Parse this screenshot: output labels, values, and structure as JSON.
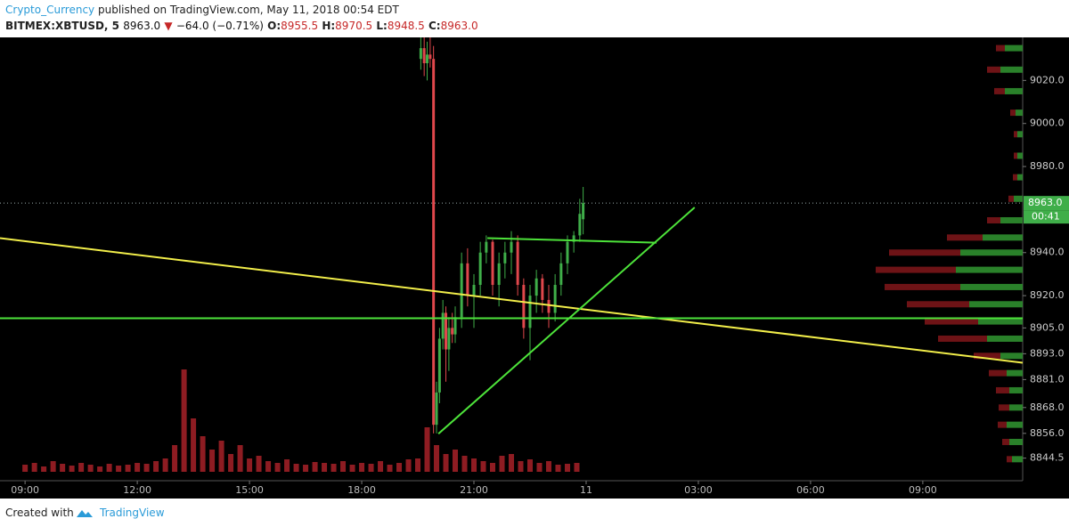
{
  "header": {
    "author": "Crypto_Currency",
    "published": "published on TradingView.com, May 11, 2018 00:54 EDT",
    "symbol": "BITMEX:XBTUSD, 5",
    "last": "8963.0",
    "arrow": "▼",
    "change": "−64.0 (−0.71%)",
    "o_label": "O:",
    "o": "8955.5",
    "h_label": "H:",
    "h": "8970.5",
    "l_label": "L:",
    "l": "8948.5",
    "c_label": "C:",
    "c": "8963.0"
  },
  "chart_data": {
    "type": "candlestick",
    "x": [
      19.58,
      19.67,
      19.75,
      19.83,
      19.92,
      20.0,
      20.08,
      20.17,
      20.25,
      20.33,
      20.42,
      20.5,
      20.67,
      20.83,
      21.0,
      21.17,
      21.33,
      21.5,
      21.67,
      21.83,
      22.0,
      22.17,
      22.33,
      22.5,
      22.67,
      22.83,
      23.0,
      23.17,
      23.33,
      23.5,
      23.67,
      23.83,
      23.92
    ],
    "open": [
      9030,
      9035,
      9028,
      9032,
      9030,
      8860,
      8875,
      8900,
      8912,
      8895,
      8905,
      8902,
      8910,
      8935,
      8920,
      8925,
      8940,
      8945,
      8925,
      8935,
      8940,
      8945,
      8925,
      8905,
      8920,
      8928,
      8918,
      8912,
      8925,
      8935,
      8945,
      8948,
      8955.5
    ],
    "high": [
      9040,
      9040,
      9038,
      9040,
      9036,
      8880,
      8905,
      8918,
      8915,
      8910,
      8912,
      8915,
      8940,
      8942,
      8930,
      8945,
      8948,
      8946,
      8940,
      8945,
      8950,
      8948,
      8928,
      8925,
      8932,
      8930,
      8925,
      8930,
      8940,
      8948,
      8950,
      8965,
      8970.5
    ],
    "low": [
      9025,
      9022,
      9020,
      9026,
      8856,
      8856,
      8870,
      8895,
      8880,
      8885,
      8898,
      8898,
      8905,
      8915,
      8905,
      8920,
      8935,
      8920,
      8915,
      8928,
      8930,
      8920,
      8900,
      8890,
      8912,
      8912,
      8905,
      8908,
      8920,
      8930,
      8940,
      8945,
      8948.5
    ],
    "close": [
      9035,
      9028,
      9032,
      9030,
      8860,
      8875,
      8900,
      8912,
      8895,
      8905,
      8902,
      8910,
      8935,
      8920,
      8925,
      8940,
      8945,
      8925,
      8935,
      8940,
      8945,
      8925,
      8905,
      8920,
      8928,
      8918,
      8912,
      8925,
      8935,
      8945,
      8948,
      8958,
      8963
    ],
    "up_color": "#3fae49",
    "down_color": "#e0474c",
    "xlim": [
      8.33,
      35.67
    ],
    "xticks": [
      {
        "value": 9,
        "label": "09:00"
      },
      {
        "value": 12,
        "label": "12:00"
      },
      {
        "value": 15,
        "label": "15:00"
      },
      {
        "value": 18,
        "label": "18:00"
      },
      {
        "value": 21,
        "label": "21:00"
      },
      {
        "value": 24,
        "label": "11"
      },
      {
        "value": 27,
        "label": "03:00"
      },
      {
        "value": 30,
        "label": "06:00"
      },
      {
        "value": 33,
        "label": "09:00"
      }
    ],
    "ylim": [
      8834,
      9040
    ],
    "yticks": [
      {
        "value": 9020,
        "label": "9020.0"
      },
      {
        "value": 9000,
        "label": "9000.0"
      },
      {
        "value": 8980,
        "label": "8980.0"
      },
      {
        "value": 8940,
        "label": "8940.0"
      },
      {
        "value": 8920,
        "label": "8920.0"
      },
      {
        "value": 8905,
        "label": "8905.0"
      },
      {
        "value": 8893,
        "label": "8893.0"
      },
      {
        "value": 8881,
        "label": "8881.0"
      },
      {
        "value": 8868,
        "label": "8868.0"
      },
      {
        "value": 8856,
        "label": "8856.0"
      },
      {
        "value": 8844.5,
        "label": "8844.5"
      }
    ],
    "last_price": {
      "value": 8963,
      "label": "8963.0",
      "color": "#3fae49"
    },
    "countdown": "00:41",
    "volume": {
      "color": "#8e1c22",
      "vlim": [
        0,
        120
      ],
      "x": [
        9.0,
        9.25,
        9.5,
        9.75,
        10.0,
        10.25,
        10.5,
        10.75,
        11.0,
        11.25,
        11.5,
        11.75,
        12.0,
        12.25,
        12.5,
        12.75,
        13.0,
        13.25,
        13.5,
        13.75,
        14.0,
        14.25,
        14.5,
        14.75,
        15.0,
        15.25,
        15.5,
        15.75,
        16.0,
        16.25,
        16.5,
        16.75,
        17.0,
        17.25,
        17.5,
        17.75,
        18.0,
        18.25,
        18.5,
        18.75,
        19.0,
        19.25,
        19.5,
        19.75,
        20.0,
        20.25,
        20.5,
        20.75,
        21.0,
        21.25,
        21.5,
        21.75,
        22.0,
        22.25,
        22.5,
        22.75,
        23.0,
        23.25,
        23.5,
        23.75
      ],
      "values": [
        8,
        10,
        6,
        12,
        9,
        7,
        10,
        8,
        6,
        9,
        7,
        8,
        10,
        9,
        12,
        15,
        30,
        115,
        60,
        40,
        25,
        35,
        20,
        30,
        15,
        18,
        12,
        10,
        14,
        9,
        8,
        11,
        10,
        9,
        12,
        8,
        10,
        9,
        12,
        8,
        10,
        14,
        15,
        50,
        30,
        20,
        25,
        18,
        15,
        12,
        10,
        18,
        20,
        12,
        14,
        10,
        12,
        8,
        9,
        10
      ]
    },
    "lines": [
      {
        "color": "#f2ee4a",
        "x": [
          8.33,
          35.67
        ],
        "y": [
          8946.7,
          8888.8
        ]
      },
      {
        "color": "#4de33a",
        "x": [
          8.33,
          35.67
        ],
        "y": [
          8909.5,
          8909.5
        ]
      },
      {
        "color": "#4de33a",
        "x": [
          21.36,
          25.88
        ],
        "y": [
          8946.7,
          8944.6
        ]
      },
      {
        "color": "#4de33a",
        "x": [
          20.05,
          26.9
        ],
        "y": [
          8855.8,
          8961
        ]
      }
    ],
    "volume_profile": {
      "up_color": "#2f8f2f",
      "down_color": "#7a1518",
      "xlim": [
        0,
        200
      ],
      "prices": [
        9035,
        9025,
        9015,
        9005,
        8995,
        8985,
        8975,
        8965,
        8955,
        8947,
        8940,
        8932,
        8924,
        8916,
        8908,
        8900,
        8892,
        8884,
        8876,
        8868,
        8860,
        8852,
        8844
      ],
      "up": [
        20,
        25,
        20,
        8,
        6,
        6,
        6,
        10,
        25,
        45,
        70,
        75,
        70,
        60,
        50,
        40,
        25,
        18,
        15,
        15,
        18,
        15,
        12
      ],
      "down": [
        10,
        15,
        12,
        6,
        4,
        4,
        5,
        6,
        15,
        40,
        80,
        90,
        85,
        70,
        60,
        55,
        30,
        20,
        15,
        12,
        10,
        8,
        6
      ]
    }
  },
  "footer": {
    "text": "Created with",
    "brand": "TradingView"
  }
}
